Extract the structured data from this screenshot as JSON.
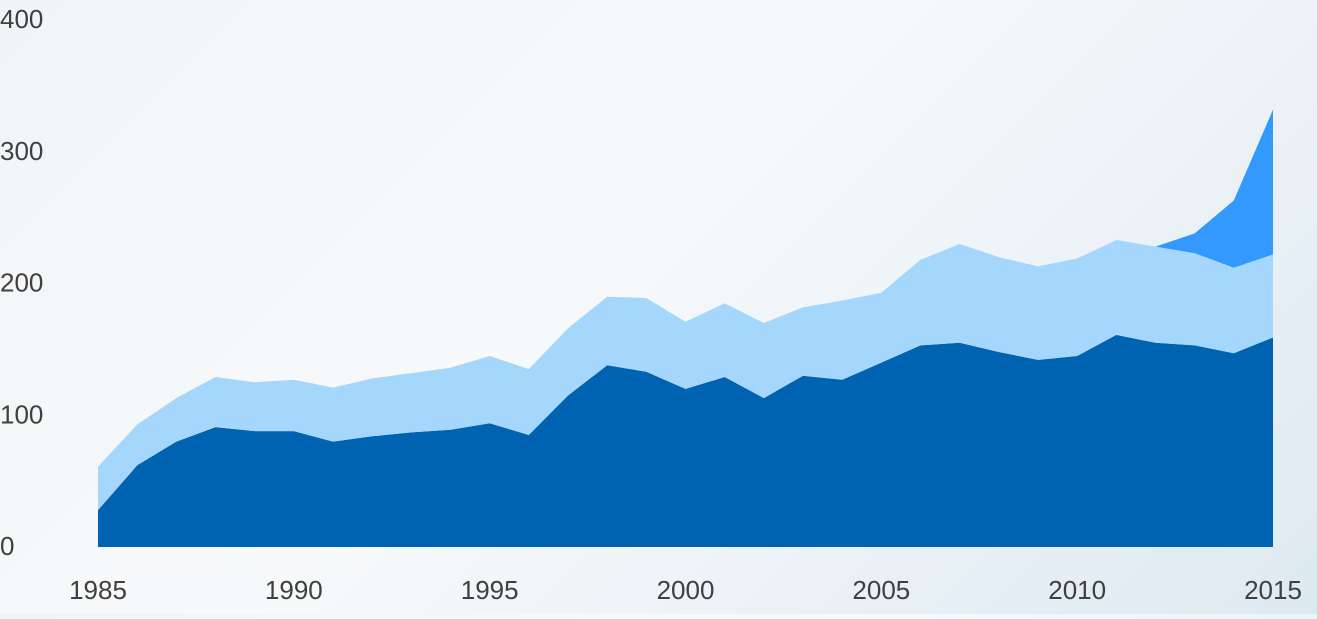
{
  "chart_data": {
    "type": "area",
    "stacked": true,
    "x": [
      1985,
      1986,
      1987,
      1988,
      1989,
      1990,
      1991,
      1992,
      1993,
      1994,
      1995,
      1996,
      1997,
      1998,
      1999,
      2000,
      2001,
      2002,
      2003,
      2004,
      2005,
      2006,
      2007,
      2008,
      2009,
      2010,
      2011,
      2012,
      2013,
      2014,
      2015
    ],
    "series": [
      {
        "color": "#0063b1",
        "values": [
          28,
          62,
          80,
          91,
          88,
          88,
          80,
          84,
          87,
          89,
          94,
          85,
          115,
          138,
          133,
          120,
          129,
          113,
          130,
          127,
          140,
          153,
          155,
          148,
          142,
          145,
          161,
          155,
          153,
          147,
          159
        ]
      },
      {
        "color": "#a5d7fd",
        "values": [
          33,
          31,
          33,
          38,
          37,
          39,
          41,
          44,
          45,
          47,
          51,
          50,
          51,
          52,
          56,
          51,
          56,
          57,
          52,
          60,
          53,
          65,
          75,
          72,
          71,
          74,
          72,
          73,
          70,
          65,
          63
        ]
      },
      {
        "color": "#3399ff",
        "values": [
          0,
          0,
          0,
          0,
          0,
          0,
          0,
          0,
          0,
          0,
          0,
          0,
          0,
          0,
          0,
          0,
          0,
          0,
          0,
          0,
          0,
          0,
          0,
          0,
          0,
          0,
          0,
          0,
          15,
          51,
          110
        ]
      }
    ],
    "xticks": [
      "1985",
      "1990",
      "1995",
      "2000",
      "2005",
      "2010",
      "2015"
    ],
    "yticks": [
      "0",
      "100",
      "200",
      "300",
      "400"
    ],
    "xlim": [
      1985,
      2015
    ],
    "ylim": [
      0,
      400
    ],
    "grid": false,
    "legend": "none"
  }
}
